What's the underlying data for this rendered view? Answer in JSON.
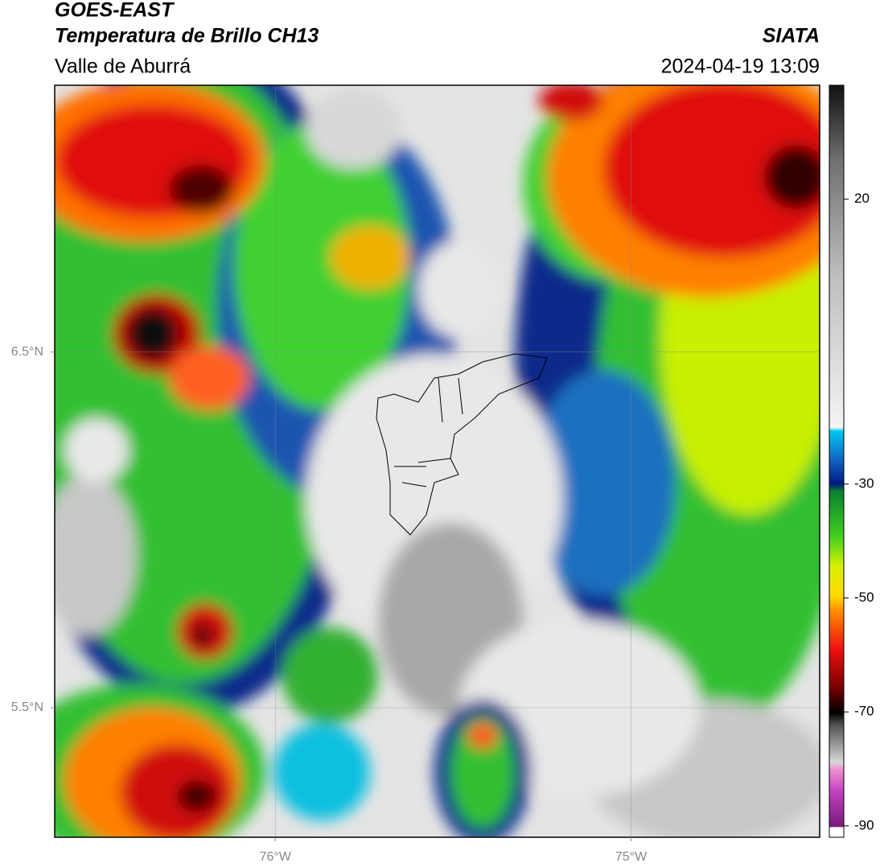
{
  "header": {
    "satellite": "GOES-EAST",
    "product": "Temperatura de Brillo CH13",
    "region": "Valle de Aburrá",
    "source": "SIATA",
    "datetime": "2024-04-19 13:09"
  },
  "map": {
    "lonlim": [
      -76.62,
      -74.47
    ],
    "latlim": [
      5.136,
      7.25
    ],
    "lonticks": [
      {
        "value": -76,
        "label": "76°W"
      },
      {
        "value": -75,
        "label": "75°W"
      }
    ],
    "latticks": [
      {
        "value": 6.5,
        "label": "6.5°N"
      },
      {
        "value": 5.5,
        "label": "5.5°N"
      }
    ],
    "grid": true
  },
  "colorbar": {
    "lim": [
      -92,
      40
    ],
    "ticks": [
      20,
      -30,
      -50,
      -70,
      -90
    ]
  }
}
